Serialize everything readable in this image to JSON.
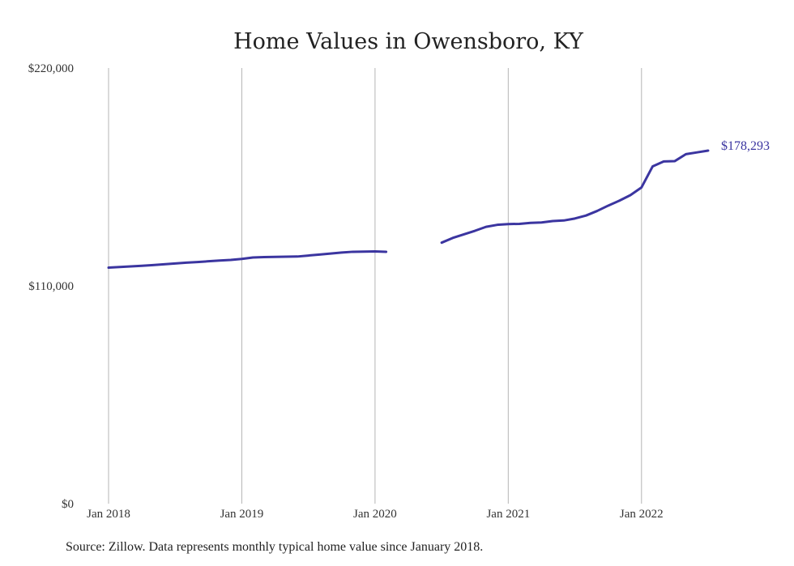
{
  "chart_data": {
    "type": "line",
    "title": "Home Values in Owensboro, KY",
    "xlabel": "",
    "ylabel": "",
    "ylim": [
      0,
      220000
    ],
    "y_ticks": [
      {
        "value": 0,
        "label": "$0"
      },
      {
        "value": 110000,
        "label": "$110,000"
      },
      {
        "value": 220000,
        "label": "$220,000"
      }
    ],
    "x_range": [
      "2018-01",
      "2022-07"
    ],
    "x_ticks": [
      {
        "date": "2018-01",
        "label": "Jan 2018"
      },
      {
        "date": "2019-01",
        "label": "Jan 2019"
      },
      {
        "date": "2020-01",
        "label": "Jan 2020"
      },
      {
        "date": "2021-01",
        "label": "Jan 2021"
      },
      {
        "date": "2022-01",
        "label": "Jan 2022"
      }
    ],
    "grid": {
      "vertical": true,
      "horizontal": false
    },
    "legend": "none",
    "line_color": "#3b35a0",
    "end_label": "$178,293",
    "series": [
      {
        "points": [
          [
            "2018-01",
            119200
          ],
          [
            "2018-02",
            119500
          ],
          [
            "2018-03",
            119800
          ],
          [
            "2018-04",
            120100
          ],
          [
            "2018-05",
            120500
          ],
          [
            "2018-06",
            120900
          ],
          [
            "2018-07",
            121300
          ],
          [
            "2018-08",
            121700
          ],
          [
            "2018-09",
            122000
          ],
          [
            "2018-10",
            122400
          ],
          [
            "2018-11",
            122800
          ],
          [
            "2018-12",
            123100
          ],
          [
            "2019-01",
            123600
          ],
          [
            "2019-02",
            124300
          ],
          [
            "2019-03",
            124500
          ],
          [
            "2019-04",
            124600
          ],
          [
            "2019-05",
            124700
          ],
          [
            "2019-06",
            124800
          ],
          [
            "2019-07",
            125300
          ],
          [
            "2019-08",
            125800
          ],
          [
            "2019-09",
            126300
          ],
          [
            "2019-10",
            126800
          ],
          [
            "2019-11",
            127200
          ],
          [
            "2019-12",
            127300
          ],
          [
            "2020-01",
            127400
          ],
          [
            "2020-02",
            127200
          ],
          [
            "2020-03",
            null
          ],
          [
            "2020-04",
            null
          ],
          [
            "2020-05",
            null
          ],
          [
            "2020-06",
            null
          ],
          [
            "2020-07",
            131800
          ],
          [
            "2020-08",
            134200
          ],
          [
            "2020-09",
            136000
          ],
          [
            "2020-10",
            137800
          ],
          [
            "2020-11",
            139800
          ],
          [
            "2020-12",
            140800
          ],
          [
            "2021-01",
            141200
          ],
          [
            "2021-02",
            141300
          ],
          [
            "2021-03",
            141800
          ],
          [
            "2021-04",
            142000
          ],
          [
            "2021-05",
            142700
          ],
          [
            "2021-06",
            143000
          ],
          [
            "2021-07",
            144000
          ],
          [
            "2021-08",
            145500
          ],
          [
            "2021-09",
            147800
          ],
          [
            "2021-10",
            150500
          ],
          [
            "2021-11",
            153000
          ],
          [
            "2021-12",
            155800
          ],
          [
            "2022-01",
            159700
          ],
          [
            "2022-02",
            170300
          ],
          [
            "2022-03",
            172800
          ],
          [
            "2022-04",
            173000
          ],
          [
            "2022-05",
            176500
          ],
          [
            "2022-06",
            177400
          ],
          [
            "2022-07",
            178293
          ]
        ]
      }
    ]
  },
  "source_note": "Source: Zillow. Data represents monthly typical home value since January 2018."
}
